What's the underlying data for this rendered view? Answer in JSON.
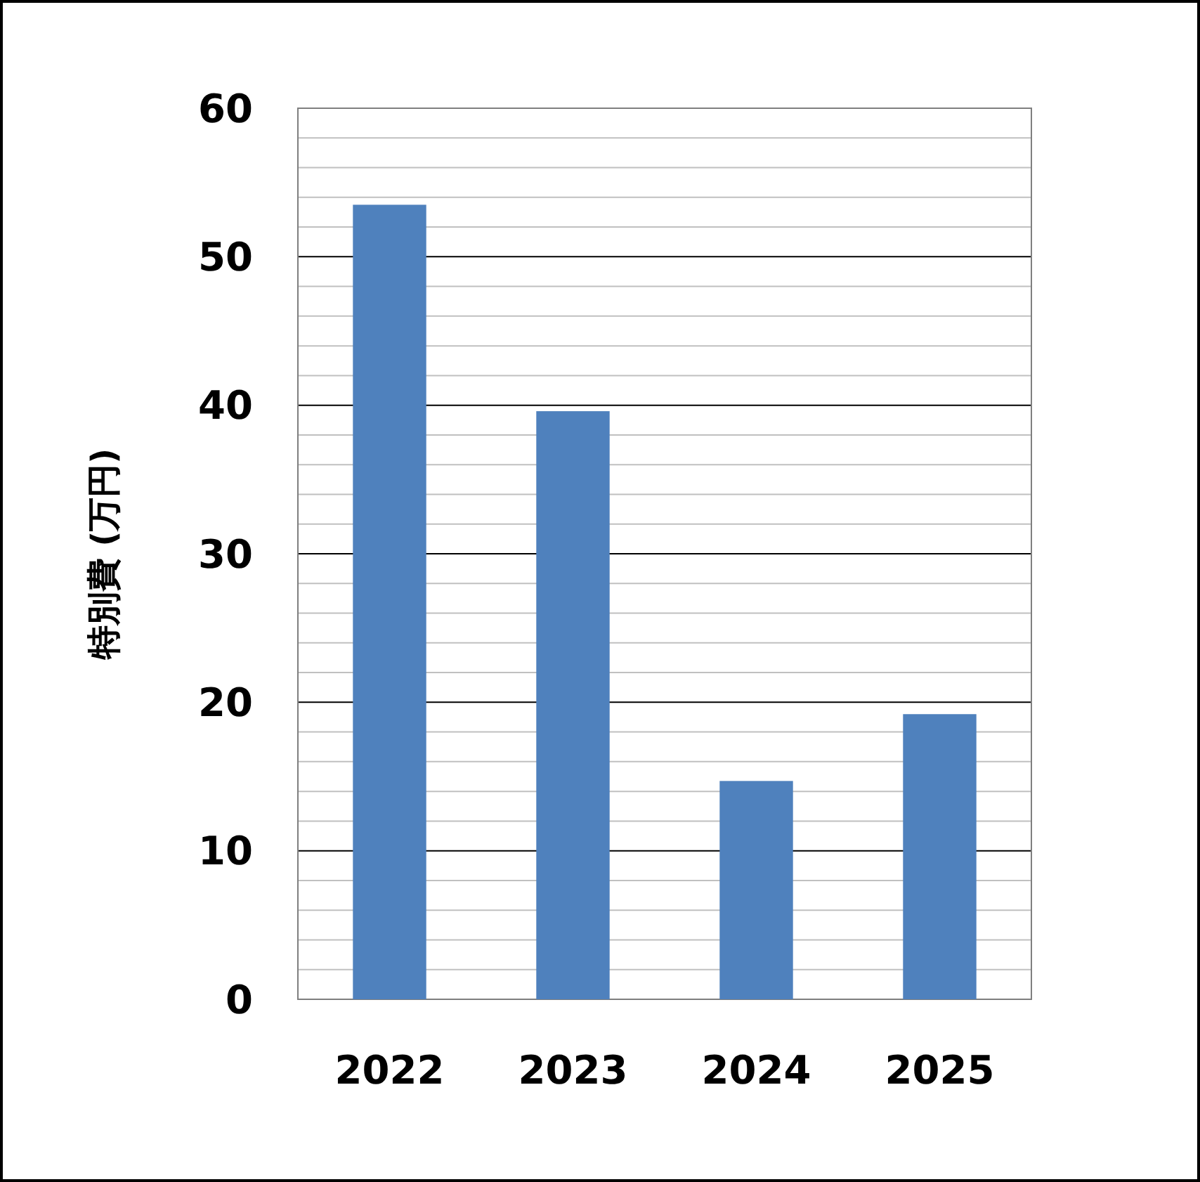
{
  "chart_data": {
    "type": "bar",
    "ylabel": "特別費 (万円)",
    "categories": [
      "2022",
      "2023",
      "2024",
      "2025"
    ],
    "values": [
      53.5,
      39.6,
      14.7,
      19.2
    ],
    "color": "#4f81bd",
    "ylim": [
      0,
      60
    ],
    "yticks": [
      0,
      {
        "value": 2,
        "label": null
      },
      {
        "value": 4,
        "label": null
      },
      {
        "value": 6,
        "label": null
      },
      {
        "value": 8,
        "label": null
      },
      10,
      {
        "value": 12,
        "label": null
      },
      {
        "value": 14,
        "label": null
      },
      {
        "value": 16,
        "label": null
      },
      {
        "value": 18,
        "label": null
      },
      20,
      {
        "value": 22,
        "label": null
      },
      {
        "value": 24,
        "label": null
      },
      {
        "value": 26,
        "label": null
      },
      {
        "value": 28,
        "label": null
      },
      30,
      {
        "value": 32,
        "label": null
      },
      {
        "value": 34,
        "label": null
      },
      {
        "value": 36,
        "label": null
      },
      {
        "value": 38,
        "label": null
      },
      40,
      {
        "value": 42,
        "label": null
      },
      {
        "value": 44,
        "label": null
      },
      {
        "value": 46,
        "label": null
      },
      {
        "value": 48,
        "label": null
      },
      50,
      {
        "value": 52,
        "label": null
      },
      {
        "value": 54,
        "label": null
      },
      {
        "value": 56,
        "label": null
      },
      {
        "value": 58,
        "label": null
      },
      60
    ],
    "grid": true
  }
}
